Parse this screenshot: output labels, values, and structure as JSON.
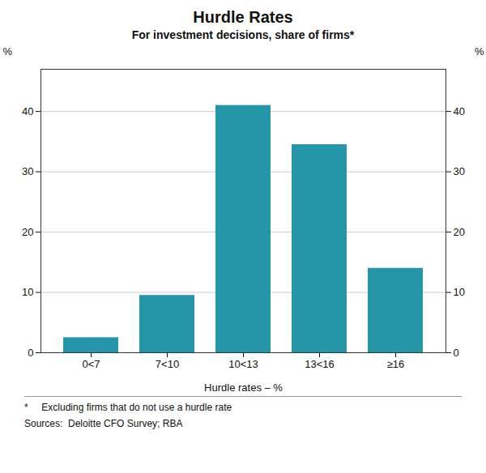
{
  "chart_data": {
    "type": "bar",
    "title": "Hurdle Rates",
    "subtitle": "For investment decisions, share of firms*",
    "categories": [
      "0<7",
      "7<10",
      "10<13",
      "13<16",
      "≥16"
    ],
    "values": [
      2.5,
      9.5,
      41.0,
      34.5,
      14.0
    ],
    "color": "#2596a8",
    "xlabel": "Hurdle rates – %",
    "ylabel": "%",
    "y2label": "%",
    "ylim": [
      0,
      47
    ],
    "yticks": [
      0,
      10,
      20,
      30,
      40
    ],
    "y2lim": [
      0,
      47
    ],
    "y2ticks": [
      0,
      10,
      20,
      30,
      40
    ],
    "grid": true,
    "footnotes": [
      "*     Excluding firms that do not use a hurdle rate",
      "Sources:  Deloitte CFO Survey; RBA"
    ]
  }
}
